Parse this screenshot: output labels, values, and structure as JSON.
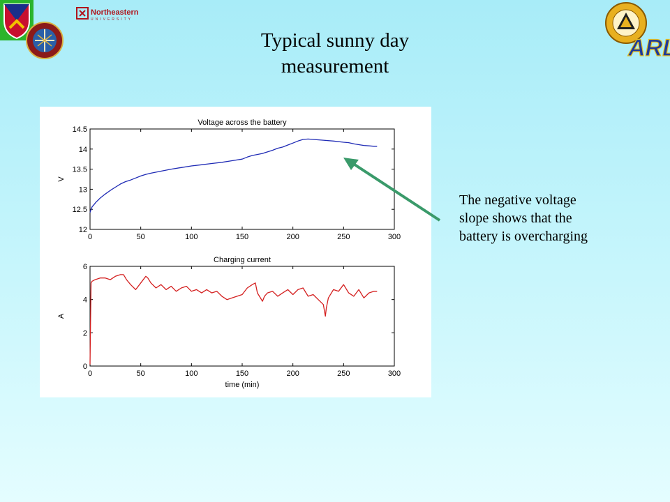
{
  "slide": {
    "title_lines": [
      "Typical sunny day",
      "measurement"
    ],
    "note_lines": [
      "The negative voltage",
      "slope shows that the",
      "battery is overcharging"
    ],
    "logos": {
      "nu_text": "Northeastern",
      "nu_subtext": "UNIVERSITY",
      "arl_text": "ARL"
    },
    "arrow_color": "#3a9a6a"
  },
  "chart_data": [
    {
      "type": "line",
      "title": "Voltage across the battery",
      "xlabel": "",
      "ylabel": "V",
      "xlim": [
        0,
        300
      ],
      "ylim": [
        12,
        14.5
      ],
      "xticks": [
        0,
        50,
        100,
        150,
        200,
        250,
        300
      ],
      "yticks": [
        12,
        12.5,
        13,
        13.5,
        14,
        14.5
      ],
      "ytick_labels": [
        "12",
        "12.5",
        "13",
        "13.5",
        "14",
        "14.5"
      ],
      "color": "#1f2bb5",
      "series": [
        {
          "x": [
            0,
            1,
            2,
            4,
            6,
            8,
            10,
            15,
            20,
            25,
            30,
            35,
            40,
            45,
            50,
            55,
            60,
            70,
            80,
            90,
            100,
            110,
            120,
            130,
            140,
            150,
            155,
            160,
            170,
            180,
            185,
            190,
            195,
            200,
            205,
            210,
            215,
            220,
            230,
            240,
            250,
            255,
            260,
            265,
            270,
            275,
            280,
            283
          ],
          "y": [
            12.42,
            12.5,
            12.56,
            12.62,
            12.68,
            12.73,
            12.78,
            12.88,
            12.97,
            13.05,
            13.13,
            13.19,
            13.23,
            13.28,
            13.33,
            13.37,
            13.4,
            13.45,
            13.5,
            13.54,
            13.58,
            13.61,
            13.64,
            13.67,
            13.71,
            13.75,
            13.8,
            13.84,
            13.89,
            13.97,
            14.02,
            14.05,
            14.1,
            14.15,
            14.2,
            14.24,
            14.25,
            14.24,
            14.22,
            14.2,
            14.17,
            14.16,
            14.13,
            14.11,
            14.09,
            14.08,
            14.07,
            14.07
          ]
        }
      ]
    },
    {
      "type": "line",
      "title": "Charging current",
      "xlabel": "time (min)",
      "ylabel": "A",
      "xlim": [
        0,
        300
      ],
      "ylim": [
        0,
        6
      ],
      "xticks": [
        0,
        50,
        100,
        150,
        200,
        250,
        300
      ],
      "yticks": [
        0,
        2,
        4,
        6
      ],
      "ytick_labels": [
        "0",
        "2",
        "4",
        "6"
      ],
      "color": "#d42020",
      "series": [
        {
          "x": [
            0,
            0.5,
            1,
            2,
            5,
            10,
            15,
            20,
            25,
            30,
            33,
            36,
            40,
            45,
            50,
            55,
            57,
            60,
            65,
            70,
            75,
            80,
            85,
            90,
            95,
            100,
            105,
            110,
            115,
            120,
            125,
            130,
            135,
            140,
            145,
            150,
            155,
            160,
            163,
            165,
            170,
            172,
            175,
            180,
            185,
            190,
            195,
            200,
            205,
            210,
            215,
            220,
            225,
            230,
            232,
            233,
            235,
            240,
            245,
            250,
            255,
            260,
            265,
            270,
            275,
            280,
            283
          ],
          "y": [
            0.1,
            2.6,
            5.0,
            5.1,
            5.2,
            5.3,
            5.3,
            5.2,
            5.4,
            5.5,
            5.5,
            5.2,
            4.9,
            4.6,
            5.0,
            5.4,
            5.3,
            5.0,
            4.7,
            4.9,
            4.6,
            4.8,
            4.5,
            4.7,
            4.8,
            4.5,
            4.6,
            4.4,
            4.6,
            4.4,
            4.5,
            4.2,
            4.0,
            4.1,
            4.2,
            4.3,
            4.7,
            4.9,
            5.0,
            4.4,
            3.9,
            4.2,
            4.4,
            4.5,
            4.2,
            4.4,
            4.6,
            4.3,
            4.6,
            4.7,
            4.2,
            4.3,
            4.0,
            3.7,
            3.0,
            3.5,
            4.1,
            4.6,
            4.5,
            4.9,
            4.4,
            4.2,
            4.6,
            4.1,
            4.4,
            4.5,
            4.5
          ]
        }
      ]
    }
  ]
}
